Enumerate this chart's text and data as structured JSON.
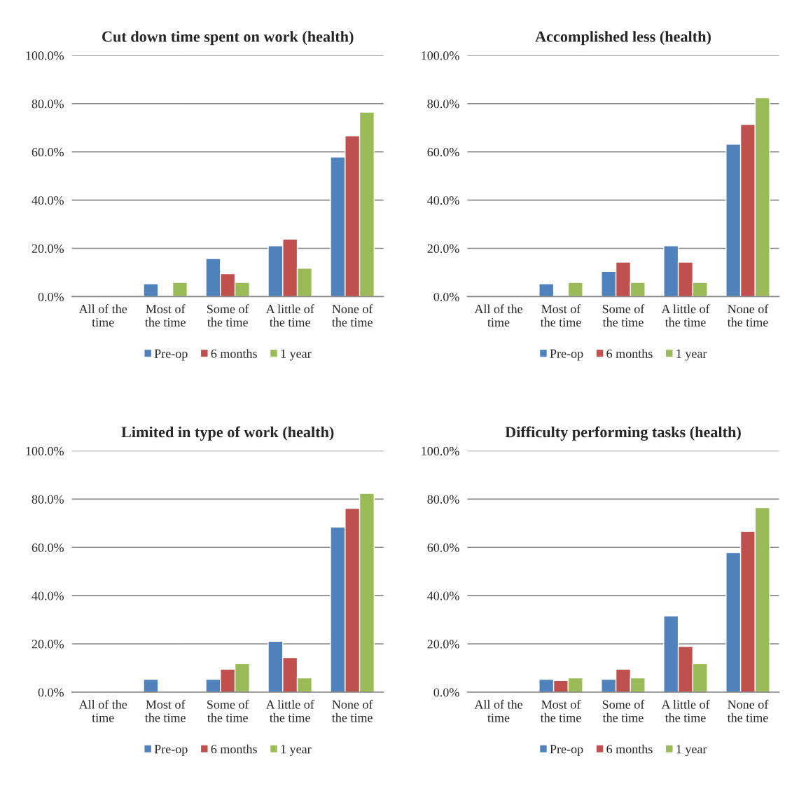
{
  "chart_data": [
    {
      "type": "bar",
      "title": "Cut down time spent on work (health)",
      "categories": [
        "All of the\ntime",
        "Most of\nthe time",
        "Some of\nthe time",
        "A little of\nthe time",
        "None of\nthe time"
      ],
      "series": [
        {
          "name": "Pre-op",
          "color": "#4f81bd",
          "values": [
            null,
            5.3,
            15.8,
            21.1,
            57.9
          ]
        },
        {
          "name": "6 months",
          "color": "#c0504d",
          "values": [
            null,
            null,
            9.5,
            23.8,
            66.7
          ]
        },
        {
          "name": "1 year",
          "color": "#9bbb59",
          "values": [
            null,
            5.9,
            5.9,
            11.8,
            76.5
          ]
        }
      ],
      "ylim": [
        0,
        100
      ],
      "yticks": [
        {
          "value": 0,
          "label": "0.0%"
        },
        {
          "value": 20,
          "label": "20.0%"
        },
        {
          "value": 40,
          "label": "40.0%"
        },
        {
          "value": 60,
          "label": "60.0%"
        },
        {
          "value": 80,
          "label": "80.0%"
        },
        {
          "value": 100,
          "label": "100.0%"
        }
      ],
      "grid": "y",
      "legend": "bottom"
    },
    {
      "type": "bar",
      "title": "Accomplished less (health)",
      "categories": [
        "All of the\ntime",
        "Most of\nthe time",
        "Some of\nthe time",
        "A little of\nthe time",
        "None of\nthe time"
      ],
      "series": [
        {
          "name": "Pre-op",
          "color": "#4f81bd",
          "values": [
            null,
            5.3,
            10.5,
            21.1,
            63.2
          ]
        },
        {
          "name": "6 months",
          "color": "#c0504d",
          "values": [
            null,
            null,
            14.3,
            14.3,
            71.4
          ]
        },
        {
          "name": "1 year",
          "color": "#9bbb59",
          "values": [
            null,
            5.9,
            5.9,
            5.9,
            82.4
          ]
        }
      ],
      "ylim": [
        0,
        100
      ],
      "yticks": [
        {
          "value": 0,
          "label": "0.0%"
        },
        {
          "value": 20,
          "label": "20.0%"
        },
        {
          "value": 40,
          "label": "40.0%"
        },
        {
          "value": 60,
          "label": "60.0%"
        },
        {
          "value": 80,
          "label": "80.0%"
        },
        {
          "value": 100,
          "label": "100.0%"
        }
      ],
      "grid": "y",
      "legend": "bottom"
    },
    {
      "type": "bar",
      "title": "Limited in type of work (health)",
      "categories": [
        "All of the\ntime",
        "Most of\nthe time",
        "Some of\nthe time",
        "A little of\nthe time",
        "None of\nthe time"
      ],
      "series": [
        {
          "name": "Pre-op",
          "color": "#4f81bd",
          "values": [
            null,
            5.3,
            5.3,
            21.1,
            68.4
          ]
        },
        {
          "name": "6 months",
          "color": "#c0504d",
          "values": [
            null,
            null,
            9.5,
            14.3,
            76.2
          ]
        },
        {
          "name": "1 year",
          "color": "#9bbb59",
          "values": [
            null,
            null,
            11.8,
            5.9,
            82.4
          ]
        }
      ],
      "ylim": [
        0,
        100
      ],
      "yticks": [
        {
          "value": 0,
          "label": "0.0%"
        },
        {
          "value": 20,
          "label": "20.0%"
        },
        {
          "value": 40,
          "label": "40.0%"
        },
        {
          "value": 60,
          "label": "60.0%"
        },
        {
          "value": 80,
          "label": "80.0%"
        },
        {
          "value": 100,
          "label": "100.0%"
        }
      ],
      "grid": "y",
      "legend": "bottom"
    },
    {
      "type": "bar",
      "title": "Difficulty performing tasks (health)",
      "categories": [
        "All of the\ntime",
        "Most of\nthe time",
        "Some of\nthe time",
        "A little of\nthe time",
        "None of\nthe time"
      ],
      "series": [
        {
          "name": "Pre-op",
          "color": "#4f81bd",
          "values": [
            null,
            5.3,
            5.3,
            31.6,
            57.9
          ]
        },
        {
          "name": "6 months",
          "color": "#c0504d",
          "values": [
            null,
            4.8,
            9.5,
            19.0,
            66.7
          ]
        },
        {
          "name": "1 year",
          "color": "#9bbb59",
          "values": [
            null,
            5.9,
            5.9,
            11.8,
            76.5
          ]
        }
      ],
      "ylim": [
        0,
        100
      ],
      "yticks": [
        {
          "value": 0,
          "label": "0.0%"
        },
        {
          "value": 20,
          "label": "20.0%"
        },
        {
          "value": 40,
          "label": "40.0%"
        },
        {
          "value": 60,
          "label": "60.0%"
        },
        {
          "value": 80,
          "label": "80.0%"
        },
        {
          "value": 100,
          "label": "100.0%"
        }
      ],
      "grid": "y",
      "legend": "bottom"
    }
  ]
}
